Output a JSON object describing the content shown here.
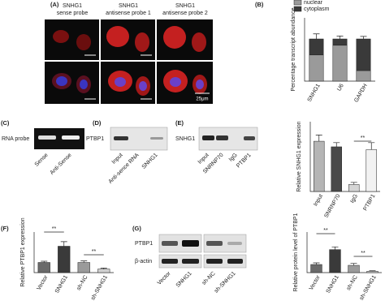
{
  "panels": {
    "a": {
      "label": "(A)",
      "headers": [
        [
          "SNHG1",
          "sense probe"
        ],
        [
          "SNHG1",
          "antisense probe 1"
        ],
        [
          "SNHG1",
          "antisense probe 2"
        ]
      ],
      "scale": "25μm"
    },
    "c": {
      "label": "(C)",
      "row": "RNA probe",
      "lanes": [
        "Sense",
        "Anti-Sense"
      ]
    },
    "d": {
      "label": "(D)",
      "row": "PTBP1",
      "lanes": [
        "Input",
        "Anti-sence RNA",
        "SNHG1"
      ]
    },
    "e": {
      "label": "(E)",
      "row": "SNHG1",
      "lanes": [
        "Input",
        "SNRNP70",
        "IgG",
        "PTBP1"
      ]
    },
    "f": {
      "label": "(F)"
    },
    "g": {
      "label": "(G)",
      "rows": [
        "PTBP1",
        "β-actin"
      ],
      "lanes": [
        "Vector",
        "SNHG1",
        "sh-NC",
        "sh-SNHG1"
      ]
    },
    "b": {
      "label": "(B)"
    }
  },
  "chart_data": [
    {
      "type": "stacked_bar",
      "y_label": "Percentage transcript abundance",
      "categories": [
        "SNHG1",
        "U6",
        "GAPDH"
      ],
      "series": [
        {
          "name": "nuclear",
          "color": "#9a9a9a",
          "values": [
            62,
            85,
            25
          ]
        },
        {
          "name": "cytoplasm",
          "color": "#3a3a3a",
          "values": [
            38,
            15,
            75
          ],
          "errors": [
            12,
            7,
            6
          ]
        }
      ],
      "ylim": [
        0,
        150
      ]
    },
    {
      "type": "bar",
      "y_label": "Relative SNHG1 expression",
      "categories": [
        "Input",
        "SNRNP70",
        "IgG",
        "PTBP1"
      ],
      "values": [
        7.2,
        6.4,
        1.0,
        6.0
      ],
      "errors": [
        0.9,
        0.6,
        0.3,
        1.0
      ],
      "colors": [
        "#b5b5b5",
        "#4a4a4a",
        "#d5d5d5",
        "#f2f2f2"
      ],
      "ylim": [
        0,
        10
      ],
      "annotations": [
        "**"
      ]
    },
    {
      "type": "bar",
      "y_label": "Relative PTBP1 expression",
      "categories": [
        "Vector",
        "SNHG1",
        "sh-NC",
        "sh-SNHG1"
      ],
      "values": [
        1.0,
        2.6,
        1.0,
        0.35
      ],
      "errors": [
        0.12,
        0.45,
        0.15,
        0.1
      ],
      "colors": [
        "#6a6a6a",
        "#3a3a3a",
        "#9a9a9a",
        "#cfcfcf"
      ],
      "ylim": [
        0,
        4
      ],
      "annotations": [
        "**",
        "**"
      ]
    },
    {
      "type": "bar",
      "y_label": "Relative protein level of PTBP1",
      "categories": [
        "Vector",
        "SNHG1",
        "sh-NC",
        "sh-SNHG1"
      ],
      "values": [
        0.3,
        0.85,
        0.27,
        0.05
      ],
      "errors": [
        0.06,
        0.1,
        0.07,
        0.02
      ],
      "colors": [
        "#6a6a6a",
        "#3a3a3a",
        "#9a9a9a",
        "#cfcfcf"
      ],
      "ylim": [
        0,
        1.5
      ],
      "annotations": [
        "**",
        "**"
      ]
    }
  ]
}
